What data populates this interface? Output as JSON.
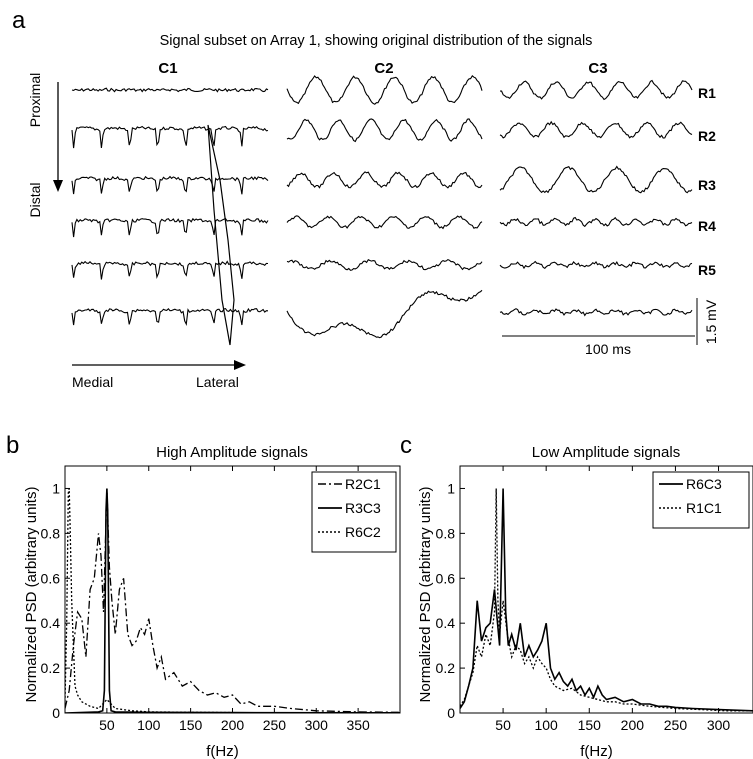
{
  "panel_a": {
    "letter": "a",
    "title": "Signal subset on Array 1, showing original distribution of the signals",
    "columns": [
      "C1",
      "C2",
      "C3"
    ],
    "rows": [
      "R1",
      "R2",
      "R3",
      "R4",
      "R5"
    ],
    "y_axis_top": "Proximal",
    "y_axis_bottom": "Distal",
    "x_axis_left": "Medial",
    "x_axis_right": "Lateral",
    "time_scale": "100 ms",
    "voltage_scale": "1.5 mV"
  },
  "panel_b": {
    "letter": "b"
  },
  "panel_c": {
    "letter": "c"
  },
  "chart_data": [
    {
      "type": "line",
      "title": "High Amplitude signals",
      "xlabel": "f(Hz)",
      "ylabel": "Normalized PSD (arbitrary units)",
      "xlim": [
        0,
        400
      ],
      "ylim": [
        0,
        1.1
      ],
      "xticks": [
        50,
        100,
        150,
        200,
        250,
        300,
        350
      ],
      "yticks": [
        0,
        0.2,
        0.4,
        0.6,
        0.8,
        1
      ],
      "legend_position": "top-right",
      "series": [
        {
          "name": "R2C1",
          "style": "dashdot",
          "points": [
            [
              0,
              0.02
            ],
            [
              5,
              0.1
            ],
            [
              10,
              0.3
            ],
            [
              15,
              0.45
            ],
            [
              20,
              0.42
            ],
            [
              25,
              0.25
            ],
            [
              30,
              0.55
            ],
            [
              35,
              0.6
            ],
            [
              40,
              0.8
            ],
            [
              43,
              0.7
            ],
            [
              46,
              0.45
            ],
            [
              50,
              1.0
            ],
            [
              53,
              0.65
            ],
            [
              56,
              0.5
            ],
            [
              60,
              0.35
            ],
            [
              65,
              0.55
            ],
            [
              70,
              0.6
            ],
            [
              75,
              0.35
            ],
            [
              80,
              0.3
            ],
            [
              85,
              0.32
            ],
            [
              90,
              0.38
            ],
            [
              95,
              0.35
            ],
            [
              100,
              0.42
            ],
            [
              105,
              0.3
            ],
            [
              110,
              0.2
            ],
            [
              115,
              0.25
            ],
            [
              120,
              0.15
            ],
            [
              130,
              0.18
            ],
            [
              140,
              0.12
            ],
            [
              150,
              0.14
            ],
            [
              160,
              0.1
            ],
            [
              170,
              0.08
            ],
            [
              180,
              0.09
            ],
            [
              190,
              0.07
            ],
            [
              200,
              0.08
            ],
            [
              210,
              0.04
            ],
            [
              220,
              0.05
            ],
            [
              230,
              0.03
            ],
            [
              250,
              0.03
            ],
            [
              270,
              0.02
            ],
            [
              300,
              0.01
            ],
            [
              350,
              0.005
            ],
            [
              400,
              0.003
            ]
          ]
        },
        {
          "name": "R3C3",
          "style": "solid",
          "points": [
            [
              0,
              0.0
            ],
            [
              40,
              0.005
            ],
            [
              45,
              0.01
            ],
            [
              47,
              0.1
            ],
            [
              49,
              0.9
            ],
            [
              50,
              1.0
            ],
            [
              51,
              0.9
            ],
            [
              53,
              0.1
            ],
            [
              55,
              0.01
            ],
            [
              60,
              0.005
            ],
            [
              100,
              0.003
            ],
            [
              200,
              0.002
            ],
            [
              400,
              0.001
            ]
          ]
        },
        {
          "name": "R6C2",
          "style": "dotted",
          "points": [
            [
              0,
              0.05
            ],
            [
              2,
              0.4
            ],
            [
              4,
              0.98
            ],
            [
              5,
              1.0
            ],
            [
              6,
              0.85
            ],
            [
              8,
              0.5
            ],
            [
              10,
              0.3
            ],
            [
              12,
              0.12
            ],
            [
              15,
              0.08
            ],
            [
              20,
              0.05
            ],
            [
              30,
              0.03
            ],
            [
              40,
              0.02
            ],
            [
              50,
              0.06
            ],
            [
              60,
              0.02
            ],
            [
              80,
              0.01
            ],
            [
              100,
              0.005
            ],
            [
              200,
              0.002
            ],
            [
              400,
              0.001
            ]
          ]
        }
      ]
    },
    {
      "type": "line",
      "title": "Low Amplitude signals",
      "xlabel": "f(Hz)",
      "ylabel": "Normalized PSD (arbitrary units)",
      "xlim": [
        0,
        340
      ],
      "ylim": [
        0,
        1.1
      ],
      "xticks": [
        50,
        100,
        150,
        200,
        250,
        300
      ],
      "yticks": [
        0,
        0.2,
        0.4,
        0.6,
        0.8,
        1
      ],
      "legend_position": "top-right",
      "series": [
        {
          "name": "R6C3",
          "style": "solid",
          "points": [
            [
              0,
              0.02
            ],
            [
              5,
              0.05
            ],
            [
              10,
              0.12
            ],
            [
              15,
              0.2
            ],
            [
              20,
              0.5
            ],
            [
              25,
              0.32
            ],
            [
              30,
              0.38
            ],
            [
              35,
              0.4
            ],
            [
              40,
              0.55
            ],
            [
              43,
              0.42
            ],
            [
              46,
              0.3
            ],
            [
              50,
              1.0
            ],
            [
              53,
              0.45
            ],
            [
              56,
              0.3
            ],
            [
              60,
              0.35
            ],
            [
              65,
              0.28
            ],
            [
              70,
              0.4
            ],
            [
              75,
              0.25
            ],
            [
              80,
              0.3
            ],
            [
              85,
              0.25
            ],
            [
              90,
              0.28
            ],
            [
              95,
              0.32
            ],
            [
              100,
              0.4
            ],
            [
              105,
              0.2
            ],
            [
              110,
              0.15
            ],
            [
              115,
              0.18
            ],
            [
              120,
              0.14
            ],
            [
              125,
              0.12
            ],
            [
              130,
              0.15
            ],
            [
              135,
              0.1
            ],
            [
              140,
              0.12
            ],
            [
              145,
              0.08
            ],
            [
              150,
              0.11
            ],
            [
              155,
              0.07
            ],
            [
              160,
              0.12
            ],
            [
              165,
              0.08
            ],
            [
              170,
              0.06
            ],
            [
              180,
              0.07
            ],
            [
              190,
              0.05
            ],
            [
              200,
              0.06
            ],
            [
              210,
              0.04
            ],
            [
              220,
              0.04
            ],
            [
              230,
              0.03
            ],
            [
              240,
              0.03
            ],
            [
              250,
              0.025
            ],
            [
              270,
              0.02
            ],
            [
              300,
              0.015
            ],
            [
              340,
              0.01
            ]
          ]
        },
        {
          "name": "R1C1",
          "style": "dotted",
          "points": [
            [
              0,
              0.03
            ],
            [
              5,
              0.06
            ],
            [
              10,
              0.12
            ],
            [
              15,
              0.18
            ],
            [
              20,
              0.3
            ],
            [
              25,
              0.25
            ],
            [
              30,
              0.35
            ],
            [
              35,
              0.3
            ],
            [
              40,
              0.45
            ],
            [
              42,
              1.0
            ],
            [
              44,
              0.5
            ],
            [
              46,
              0.35
            ],
            [
              50,
              0.5
            ],
            [
              55,
              0.35
            ],
            [
              60,
              0.25
            ],
            [
              65,
              0.3
            ],
            [
              70,
              0.28
            ],
            [
              75,
              0.22
            ],
            [
              80,
              0.25
            ],
            [
              85,
              0.2
            ],
            [
              90,
              0.25
            ],
            [
              95,
              0.22
            ],
            [
              100,
              0.2
            ],
            [
              105,
              0.15
            ],
            [
              110,
              0.12
            ],
            [
              120,
              0.1
            ],
            [
              130,
              0.11
            ],
            [
              140,
              0.08
            ],
            [
              150,
              0.07
            ],
            [
              160,
              0.06
            ],
            [
              170,
              0.05
            ],
            [
              180,
              0.05
            ],
            [
              190,
              0.04
            ],
            [
              200,
              0.04
            ],
            [
              220,
              0.03
            ],
            [
              250,
              0.02
            ],
            [
              280,
              0.015
            ],
            [
              310,
              0.01
            ],
            [
              340,
              0.01
            ]
          ]
        }
      ]
    }
  ]
}
